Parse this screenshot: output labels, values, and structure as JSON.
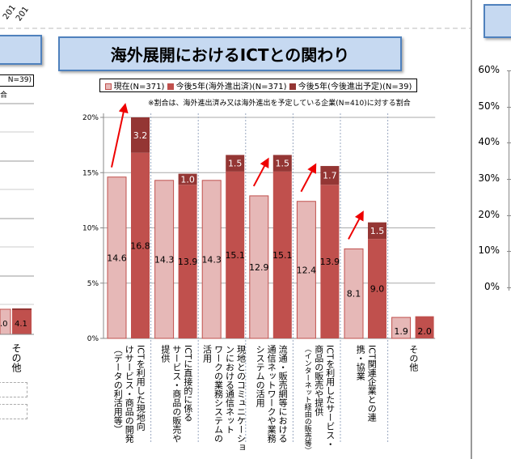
{
  "chart_data": {
    "type": "bar",
    "title": "海外展開におけるICTとの関わり",
    "note": "※割合は、海外進出済み又は海外進出を予定している企業(N=410)に対する割合",
    "ylim": [
      0,
      20
    ],
    "yticks": [
      "0%",
      "5%",
      "10%",
      "15%",
      "20%"
    ],
    "grid": true,
    "legend_position": "top",
    "categories": [
      [
        "ICTを利用した現地向",
        "けサービス・商品の開発",
        "（データの利活用等）"
      ],
      [
        "ICTに直接的に係る",
        "サービス・商品の販売や",
        "提供"
      ],
      [
        "現地とのコミュニケーショ",
        "ンにおける通信ネット",
        "ワークの業務システムの",
        "活用"
      ],
      [
        "流通・販売網等における",
        "通信ネットワークや業務",
        "システムの活用"
      ],
      [
        "ICTを利用したサービス・",
        "商品の販売や提供",
        "（インターネット経由の販売等）"
      ],
      [
        "ICT関連企業との連",
        "携・協業"
      ],
      [
        "その他"
      ]
    ],
    "series": [
      {
        "name": "現在(N=371)",
        "color": "#e6b8b7",
        "values": [
          14.6,
          14.3,
          14.3,
          12.9,
          12.4,
          8.1,
          1.9
        ]
      },
      {
        "name": "今後5年(海外進出済)(N=371)",
        "color": "#c0504d",
        "values": [
          16.8,
          13.9,
          15.1,
          15.1,
          13.9,
          9.0,
          2.0
        ]
      },
      {
        "name": "今後5年(今後進出予定)(N=39)",
        "color": "#943634",
        "values": [
          3.2,
          1.0,
          1.5,
          1.5,
          1.7,
          1.5,
          null
        ]
      }
    ],
    "arrows_on_categories": [
      0,
      3,
      4,
      5
    ]
  },
  "left_panel": {
    "legend_fragment": "N=39)",
    "note_fragment": "合",
    "bar_labels": [
      ".0",
      "4.1"
    ],
    "category": "その他",
    "top_fragments": [
      "201",
      "201"
    ]
  },
  "right_panel": {
    "yticks": [
      "0%",
      "10%",
      "20%",
      "30%",
      "40%",
      "50%",
      "60%"
    ]
  }
}
